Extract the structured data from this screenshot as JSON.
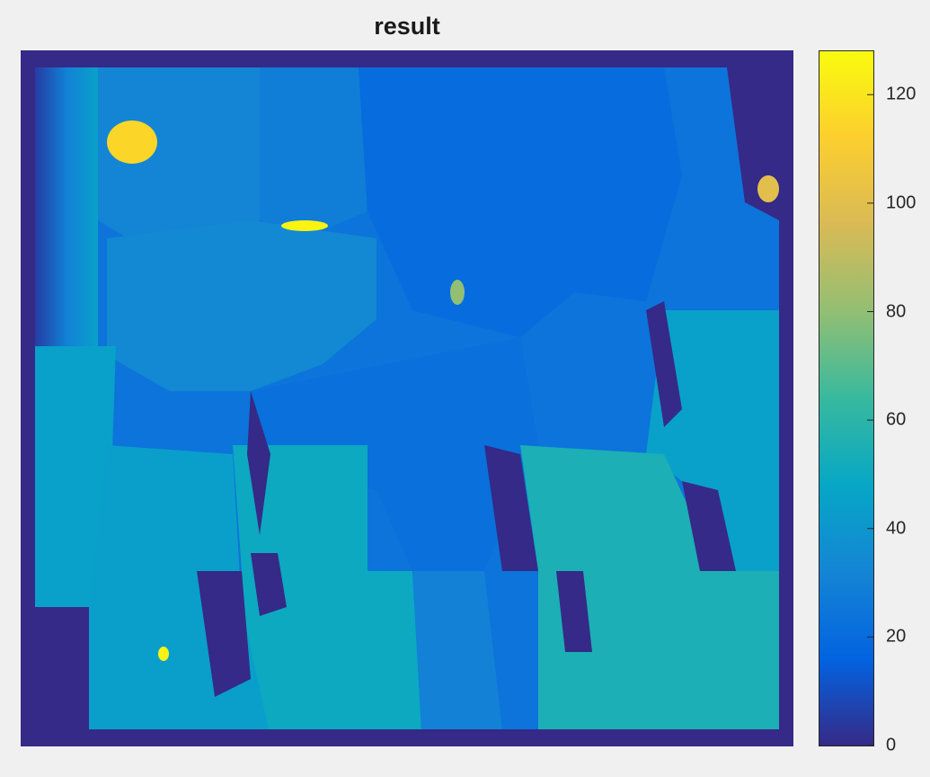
{
  "chart_data": {
    "type": "heatmap",
    "title": "result",
    "colorbar": {
      "min": 0,
      "max": 128,
      "ticks": [
        0,
        20,
        40,
        60,
        80,
        100,
        120
      ],
      "tick_labels": [
        "0",
        "20",
        "40",
        "60",
        "80",
        "100",
        "120"
      ],
      "colormap": "parula",
      "colors": [
        "#352a87",
        "#0363e1",
        "#1485d4",
        "#06a7c6",
        "#38b99e",
        "#92bf73",
        "#d9ba56",
        "#fcce2e",
        "#f9fb0e"
      ]
    },
    "regions": [
      {
        "name": "upper-middle band",
        "approx_value": 20
      },
      {
        "name": "left column",
        "approx_value": 45
      },
      {
        "name": "lower-left block",
        "approx_value": 50
      },
      {
        "name": "lower-right block",
        "approx_value": 55
      },
      {
        "name": "top-left blob",
        "approx_value": 115
      },
      {
        "name": "thin streak",
        "approx_value": 125
      },
      {
        "name": "background border",
        "approx_value": 0
      }
    ]
  }
}
